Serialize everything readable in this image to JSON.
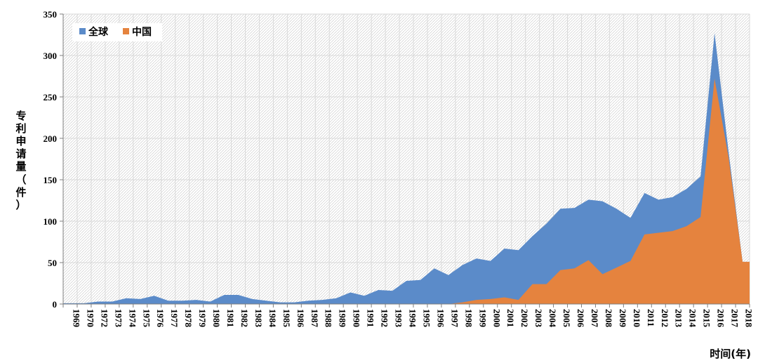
{
  "chart_data": {
    "type": "area",
    "ylabel_chars": [
      "专",
      "利",
      "申",
      "请",
      "量",
      "（",
      "件",
      "）"
    ],
    "xlabel": "时间(年)",
    "ylim": [
      0,
      350
    ],
    "yticks": [
      0,
      50,
      100,
      150,
      200,
      250,
      300,
      350
    ],
    "grid": "diagonal hatch",
    "legend_position": "top-left",
    "x": [
      "1969",
      "1970",
      "1972",
      "1973",
      "1974",
      "1975",
      "1976",
      "1977",
      "1978",
      "1979",
      "1980",
      "1981",
      "1982",
      "1983",
      "1984",
      "1985",
      "1986",
      "1987",
      "1988",
      "1989",
      "1990",
      "1991",
      "1992",
      "1993",
      "1994",
      "1995",
      "1996",
      "1997",
      "1998",
      "1999",
      "2000",
      "2001",
      "2002",
      "2003",
      "2004",
      "2005",
      "2006",
      "2007",
      "2008",
      "2009",
      "2010",
      "2011",
      "2012",
      "2013",
      "2014",
      "2015",
      "2016",
      "2017",
      "2018"
    ],
    "series": [
      {
        "name": "全球",
        "color": "#5b8bc9",
        "values": [
          1,
          1,
          3,
          3,
          7,
          6,
          10,
          4,
          4,
          5,
          3,
          11,
          11,
          6,
          4,
          2,
          2,
          4,
          5,
          7,
          14,
          10,
          17,
          16,
          28,
          29,
          43,
          35,
          47,
          55,
          52,
          67,
          65,
          82,
          97,
          115,
          116,
          126,
          124,
          115,
          104,
          134,
          126,
          129,
          139,
          154,
          327,
          184,
          51
        ]
      },
      {
        "name": "中国",
        "color": "#e5833e",
        "values": [
          0,
          0,
          0,
          0,
          0,
          0,
          0,
          0,
          0,
          0,
          0,
          0,
          0,
          0,
          0,
          0,
          0,
          0,
          0,
          0,
          0,
          0,
          0,
          0,
          0,
          0,
          0,
          0,
          2,
          5,
          6,
          8,
          5,
          24,
          24,
          41,
          43,
          53,
          36,
          44,
          52,
          84,
          86,
          88,
          94,
          105,
          272,
          177,
          51
        ]
      }
    ]
  }
}
